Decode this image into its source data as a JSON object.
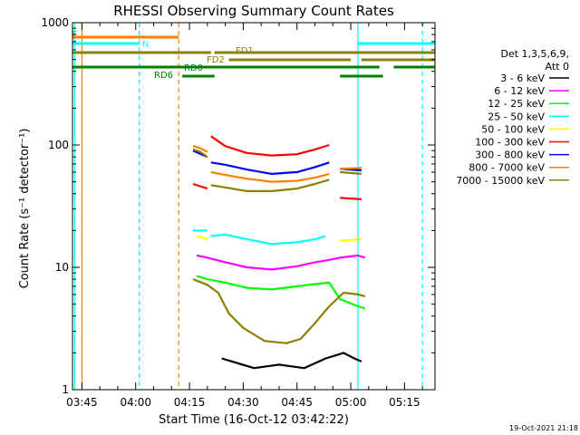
{
  "chart_data": {
    "type": "line",
    "title": "RHESSI Observing Summary Count Rates",
    "xlabel": "Start Time (16-Oct-12 03:42:22)",
    "ylabel": "Count Rate (s⁻¹ detector⁻¹)",
    "yscale": "log",
    "ylim": [
      1,
      1000
    ],
    "xlim": [
      "03:42:22",
      "05:23:30"
    ],
    "x_ticks": [
      "03:45",
      "04:00",
      "04:15",
      "04:30",
      "04:45",
      "05:00",
      "05:15"
    ],
    "y_ticks": [
      "1",
      "10",
      "100",
      "1000"
    ],
    "grid": false,
    "legend_position": "right",
    "legend_header": [
      "Det 1,3,5,6,9,",
      "Att 0"
    ],
    "timestamp": "19-Oct-2021 21:18",
    "series": [
      {
        "name": "3 - 6 keV",
        "color": "#000000",
        "segments": [
          {
            "x": [
              "04:24",
              "04:33",
              "04:40",
              "04:47",
              "04:53",
              "04:58",
              "05:01",
              "05:03"
            ],
            "y": [
              1.8,
              1.5,
              1.6,
              1.5,
              1.8,
              2.0,
              1.8,
              1.7
            ]
          }
        ]
      },
      {
        "name": "6 - 12 keV",
        "color": "#ff00ff",
        "segments": [
          {
            "x": [
              "04:17",
              "04:20",
              "04:25",
              "04:31",
              "04:38",
              "04:45",
              "04:50",
              "04:54",
              "04:57",
              "05:02",
              "05:04"
            ],
            "y": [
              12.5,
              12,
              11,
              10,
              9.6,
              10.2,
              11,
              11.5,
              12,
              12.5,
              12
            ]
          }
        ]
      },
      {
        "name": "12 - 25 keV",
        "color": "#00ff00",
        "segments": [
          {
            "x": [
              "04:17",
              "04:20",
              "04:25",
              "04:31",
              "04:38",
              "04:45",
              "04:50",
              "04:54",
              "04:57",
              "05:02",
              "05:04"
            ],
            "y": [
              8.5,
              8,
              7.5,
              6.8,
              6.6,
              7,
              7.3,
              7.5,
              5.5,
              4.8,
              4.6
            ]
          }
        ]
      },
      {
        "name": "25 - 50 keV",
        "color": "#00ffff",
        "segments": [
          {
            "x": [
              "04:16",
              "04:20"
            ],
            "y": [
              20,
              20
            ]
          },
          {
            "x": [
              "04:21",
              "04:25",
              "04:31",
              "04:38",
              "04:45",
              "04:50",
              "04:53"
            ],
            "y": [
              18,
              18.5,
              17,
              15.5,
              16,
              17,
              18
            ]
          }
        ]
      },
      {
        "name": "50 - 100 keV",
        "color": "#ffff00",
        "segments": [
          {
            "x": [
              "04:17",
              "04:20"
            ],
            "y": [
              18,
              17
            ]
          },
          {
            "x": [
              "04:57",
              "05:03"
            ],
            "y": [
              16.5,
              17
            ]
          }
        ]
      },
      {
        "name": "100 - 300 keV",
        "color": "#ff0000",
        "segments": [
          {
            "x": [
              "04:16",
              "04:20"
            ],
            "y": [
              48,
              44
            ]
          },
          {
            "x": [
              "04:21",
              "04:25",
              "04:31",
              "04:38",
              "04:45",
              "04:50",
              "04:54"
            ],
            "y": [
              118,
              98,
              86,
              82,
              84,
              92,
              100
            ]
          },
          {
            "x": [
              "04:57",
              "05:03"
            ],
            "y": [
              37,
              36
            ]
          }
        ]
      },
      {
        "name": "300 - 800 keV",
        "color": "#0000ff",
        "segments": [
          {
            "x": [
              "04:16",
              "04:20"
            ],
            "y": [
              90,
              80
            ]
          },
          {
            "x": [
              "04:21",
              "04:25",
              "04:31",
              "04:38",
              "04:45",
              "04:50",
              "04:54"
            ],
            "y": [
              72,
              69,
              63,
              58,
              60,
              66,
              72
            ]
          },
          {
            "x": [
              "04:57",
              "05:03"
            ],
            "y": [
              64,
              62
            ]
          }
        ]
      },
      {
        "name": "800 - 7000 keV",
        "color": "#ff8000",
        "segments": [
          {
            "x": [
              "04:16",
              "04:18",
              "04:20"
            ],
            "y": [
              98,
              94,
              88
            ]
          },
          {
            "x": [
              "04:21",
              "04:25",
              "04:31",
              "04:38",
              "04:45",
              "04:50",
              "04:54"
            ],
            "y": [
              60,
              57,
              53,
              50,
              51,
              54,
              58
            ]
          },
          {
            "x": [
              "04:57",
              "05:03"
            ],
            "y": [
              64,
              65
            ]
          }
        ]
      },
      {
        "name": "7000 - 15000 keV",
        "color": "#8b8000",
        "segments": [
          {
            "x": [
              "04:16",
              "04:18",
              "04:20"
            ],
            "y": [
              92,
              88,
              80
            ]
          },
          {
            "x": [
              "04:21",
              "04:25",
              "04:31",
              "04:38",
              "04:45",
              "04:50",
              "04:54"
            ],
            "y": [
              47,
              45,
              42,
              42,
              44,
              48,
              52
            ]
          },
          {
            "x": [
              "04:57",
              "05:03"
            ],
            "y": [
              60,
              58
            ]
          },
          {
            "x": [
              "04:16",
              "04:20",
              "04:23",
              "04:26",
              "04:30",
              "04:36",
              "04:42",
              "04:46",
              "04:50",
              "04:54",
              "04:58",
              "05:02",
              "05:04"
            ],
            "y": [
              8,
              7.2,
              6.2,
              4.2,
              3.2,
              2.5,
              2.4,
              2.6,
              3.5,
              4.8,
              6.2,
              6.0,
              5.8
            ]
          }
        ]
      }
    ],
    "flag_bars": [
      {
        "label": "E",
        "color": "#ff8000",
        "segments": [
          [
            "03:42:22",
            "04:12"
          ]
        ]
      },
      {
        "label": "N",
        "color": "#00ffff",
        "segments": [
          [
            "03:42:22",
            "04:01"
          ],
          [
            "05:02",
            "05:23:30"
          ]
        ]
      },
      {
        "label": "FD1",
        "color": "#8b8000",
        "segments": [
          [
            "03:42:22",
            "04:21"
          ],
          [
            "04:22",
            "05:23:30"
          ]
        ]
      },
      {
        "label": "FD2",
        "color": "#8b8000",
        "segments": [
          [
            "04:26",
            "05:00"
          ],
          [
            "05:03",
            "05:23:30"
          ]
        ]
      },
      {
        "label": "RD0",
        "color": "#008000",
        "segments": [
          [
            "03:42:22",
            "05:08"
          ],
          [
            "05:12",
            "05:23:30"
          ]
        ]
      },
      {
        "label": "RD6",
        "color": "#008000",
        "segments": [
          [
            "04:13",
            "04:22"
          ],
          [
            "04:57",
            "05:09"
          ]
        ]
      }
    ],
    "vertical_markers": [
      {
        "time": "03:43",
        "color": "#00ffff",
        "style": "solid"
      },
      {
        "time": "03:45",
        "color": "#ff8000",
        "style": "solid"
      },
      {
        "time": "04:01",
        "color": "#00ffff",
        "style": "dashed"
      },
      {
        "time": "04:12",
        "color": "#ff8000",
        "style": "dashed"
      },
      {
        "time": "05:02",
        "color": "#00ffff",
        "style": "solid"
      },
      {
        "time": "05:20",
        "color": "#00ffff",
        "style": "dashed"
      }
    ]
  }
}
